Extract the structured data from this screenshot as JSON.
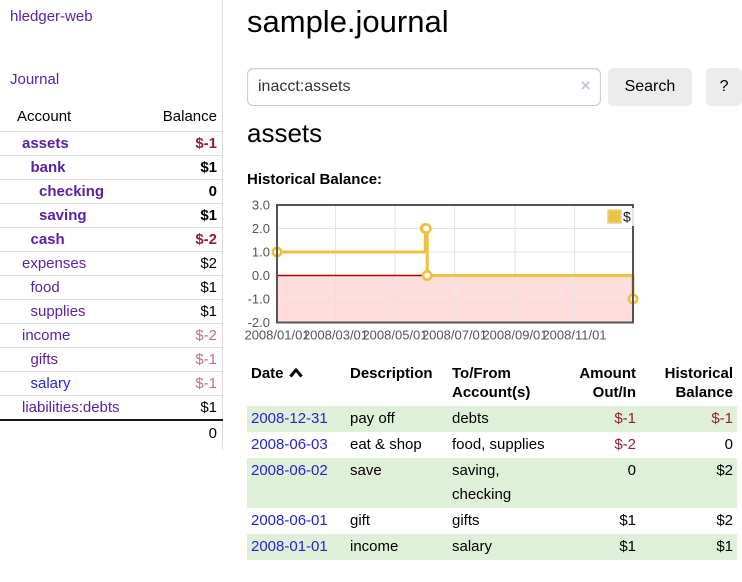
{
  "app": {
    "brand": "hledger-web",
    "nav_journal": "Journal"
  },
  "colors": {
    "link_purple": "#5c21a6",
    "link_blue": "#2424d6",
    "negative_strong": "#9c1b30",
    "negative_muted": "#c1737c",
    "row_green": "#dff0d8",
    "chart_line_gold": "#edc240"
  },
  "sidebar": {
    "table": {
      "account_header": "Account",
      "balance_header": "Balance",
      "rows": [
        {
          "name": "assets",
          "depth": 0,
          "bold": true,
          "blue": false,
          "balance": "$-1",
          "balance_class": "neg"
        },
        {
          "name": "bank",
          "depth": 1,
          "bold": true,
          "blue": false,
          "balance": "$1",
          "balance_class": "pos"
        },
        {
          "name": "checking",
          "depth": 2,
          "bold": true,
          "blue": false,
          "balance": "0",
          "balance_class": "pos"
        },
        {
          "name": "saving",
          "depth": 2,
          "bold": true,
          "blue": false,
          "balance": "$1",
          "balance_class": "pos"
        },
        {
          "name": "cash",
          "depth": 1,
          "bold": true,
          "blue": false,
          "balance": "$-2",
          "balance_class": "neg"
        },
        {
          "name": "expenses",
          "depth": 0,
          "bold": false,
          "blue": false,
          "balance": "$2",
          "balance_class": "pos"
        },
        {
          "name": "food",
          "depth": 1,
          "bold": false,
          "blue": false,
          "balance": "$1",
          "balance_class": "pos"
        },
        {
          "name": "supplies",
          "depth": 1,
          "bold": false,
          "blue": false,
          "balance": "$1",
          "balance_class": "pos"
        },
        {
          "name": "income",
          "depth": 0,
          "bold": false,
          "blue": false,
          "balance": "$-2",
          "balance_class": "neg-muted"
        },
        {
          "name": "gifts",
          "depth": 1,
          "bold": false,
          "blue": false,
          "balance": "$-1",
          "balance_class": "neg-muted"
        },
        {
          "name": "salary",
          "depth": 1,
          "bold": false,
          "blue": true,
          "balance": "$-1",
          "balance_class": "neg-muted"
        },
        {
          "name": "liabilities:debts",
          "depth": 0,
          "bold": false,
          "blue": false,
          "balance": "$1",
          "balance_class": "pos"
        }
      ],
      "total": "0"
    }
  },
  "header": {
    "title": "sample.journal"
  },
  "search": {
    "value": "inacct:assets",
    "clear_icon": "×",
    "button_label": "Search",
    "help_label": "?"
  },
  "account_page": {
    "heading": "assets",
    "chart_label": "Historical Balance:"
  },
  "chart_data": {
    "type": "line",
    "style": "step",
    "title": "Historical Balance",
    "legend": {
      "label": "$",
      "position": "top-right"
    },
    "x_range_days": [
      0,
      365
    ],
    "x_ticks": [
      {
        "label": "2008/01/01",
        "day": 0
      },
      {
        "label": "2008/03/01",
        "day": 60
      },
      {
        "label": "2008/05/01",
        "day": 121
      },
      {
        "label": "2008/07/01",
        "day": 182
      },
      {
        "label": "2008/09/01",
        "day": 244
      },
      {
        "label": "2008/11/01",
        "day": 305
      }
    ],
    "y_ticks": [
      {
        "label": "3.0",
        "value": 3
      },
      {
        "label": "2.0",
        "value": 2
      },
      {
        "label": "1.0",
        "value": 1
      },
      {
        "label": "0.0",
        "value": 0
      },
      {
        "label": "-1.0",
        "value": -1
      },
      {
        "label": "-2.0",
        "value": -2
      }
    ],
    "ylim": [
      -2,
      3
    ],
    "grid": true,
    "negative_region_color": "#ffdddd",
    "zero_line_color": "#b30000",
    "series": [
      {
        "name": "$",
        "color": "#edc240",
        "points": [
          {
            "date": "2008-01-01",
            "day": 0,
            "value": 1
          },
          {
            "date": "2008-06-01",
            "day": 152,
            "value": 2
          },
          {
            "date": "2008-06-02",
            "day": 153,
            "value": 2
          },
          {
            "date": "2008-06-03",
            "day": 154,
            "value": 0
          },
          {
            "date": "2008-12-31",
            "day": 365,
            "value": -1
          }
        ]
      }
    ]
  },
  "register": {
    "columns": [
      "Date",
      "Description",
      "To/From Account(s)",
      "Amount Out/In",
      "Historical Balance"
    ],
    "sort_indicator": "ascending",
    "rows": [
      {
        "date": "2008-12-31",
        "description": "pay off",
        "accounts": "debts",
        "amount": "$-1",
        "amount_negative": true,
        "balance": "$-1",
        "balance_negative": true
      },
      {
        "date": "2008-06-03",
        "description": "eat & shop",
        "accounts": "food, supplies",
        "amount": "$-2",
        "amount_negative": true,
        "balance": "0",
        "balance_negative": false
      },
      {
        "date": "2008-06-02",
        "description": "save",
        "accounts": "saving, checking",
        "amount": "0",
        "amount_negative": false,
        "balance": "$2",
        "balance_negative": false
      },
      {
        "date": "2008-06-01",
        "description": "gift",
        "accounts": "gifts",
        "amount": "$1",
        "amount_negative": false,
        "balance": "$2",
        "balance_negative": false
      },
      {
        "date": "2008-01-01",
        "description": "income",
        "accounts": "salary",
        "amount": "$1",
        "amount_negative": false,
        "balance": "$1",
        "balance_negative": false
      }
    ]
  }
}
